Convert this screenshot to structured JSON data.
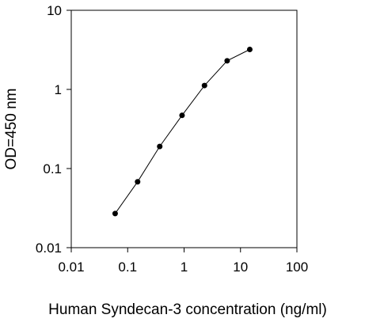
{
  "chart_data": {
    "type": "line",
    "title": "",
    "xlabel": "Human Syndecan-3 concentration (ng/ml)",
    "ylabel": "OD=450 nm",
    "xscale": "log",
    "yscale": "log",
    "xlim": [
      0.01,
      100
    ],
    "ylim": [
      0.01,
      10
    ],
    "x_ticks": [
      "0.01",
      "0.1",
      "1",
      "10",
      "100"
    ],
    "y_ticks": [
      "0.01",
      "0.1",
      "1",
      "10"
    ],
    "grid": false,
    "legend": "none",
    "series": [
      {
        "x": [
          0.06,
          0.15,
          0.37,
          0.92,
          2.3,
          5.8,
          14.6
        ],
        "y": [
          0.027,
          0.068,
          0.19,
          0.47,
          1.12,
          2.3,
          3.2
        ]
      }
    ],
    "colors": {
      "line": "#000000",
      "marker": "#000000",
      "axis": "#000000"
    }
  }
}
